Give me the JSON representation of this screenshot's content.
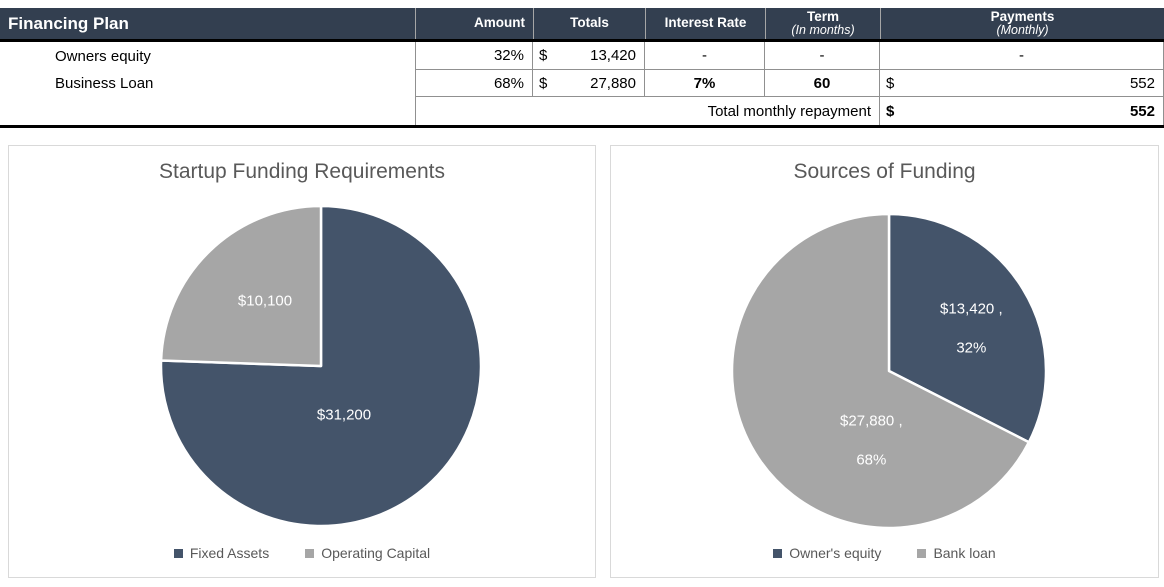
{
  "table": {
    "title": "Financing Plan",
    "headers": {
      "amount": "Amount",
      "totals": "Totals",
      "interest": "Interest Rate",
      "term": "Term",
      "term_sub": "(In months)",
      "payments": "Payments",
      "payments_sub": "(Monthly)"
    },
    "rows": [
      {
        "label": "Owners equity",
        "amount": "32%",
        "currency": "$",
        "total": "13,420",
        "interest": "-",
        "term": "-",
        "payment": "-"
      },
      {
        "label": "Business Loan",
        "amount": "68%",
        "currency": "$",
        "total": "27,880",
        "interest": "7%",
        "term": "60",
        "payment_currency": "$",
        "payment": "552"
      }
    ],
    "footer": {
      "label": "Total monthly repayment",
      "currency": "$",
      "value": "552"
    }
  },
  "colors": {
    "table_header_bg": "#333F50",
    "pie_navy": "#44546A",
    "pie_gray": "#A6A6A6",
    "chart_text": "#595959"
  },
  "chart_data": [
    {
      "type": "pie",
      "title": "Startup Funding Requirements",
      "labels": [
        "Fixed Assets",
        "Operating Capital"
      ],
      "values": [
        31200,
        10100
      ],
      "colors": [
        "#44546A",
        "#A6A6A6"
      ],
      "data_labels": [
        [
          "$31,200"
        ],
        [
          "$10,100"
        ]
      ],
      "legend_position": "bottom",
      "start_angle_deg": 0,
      "direction": "clockwise"
    },
    {
      "type": "pie",
      "title": "Sources of Funding",
      "labels": [
        "Owner's equity",
        "Bank loan"
      ],
      "values": [
        13420,
        27880
      ],
      "colors": [
        "#44546A",
        "#A6A6A6"
      ],
      "data_labels": [
        [
          "$13,420 ,",
          "32%"
        ],
        [
          "$27,880 ,",
          "68%"
        ]
      ],
      "legend_position": "bottom",
      "start_angle_deg": 0,
      "direction": "clockwise"
    }
  ]
}
